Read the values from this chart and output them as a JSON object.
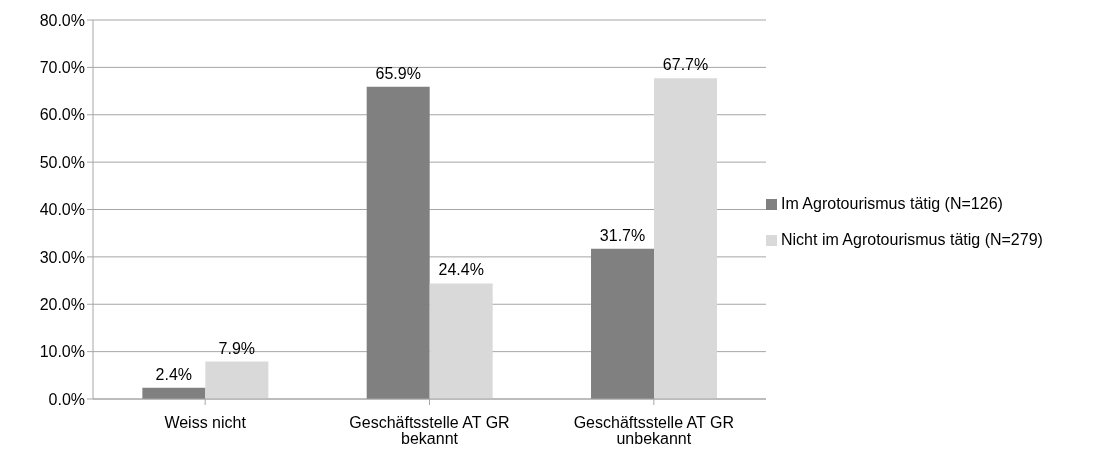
{
  "chart_data": {
    "type": "bar",
    "categories": [
      "Weiss nicht",
      "Geschäftsstelle AT GR bekannt",
      "Geschäftsstelle AT GR unbekannt"
    ],
    "series": [
      {
        "name": "Im Agrotourismus tätig (N=126)",
        "color": "#808080",
        "values": [
          2.4,
          65.9,
          31.7
        ],
        "value_labels": [
          "2.4%",
          "65.9%",
          "31.7%"
        ]
      },
      {
        "name": "Nicht im Agrotourismus tätig (N=279)",
        "color": "#d9d9d9",
        "values": [
          7.9,
          24.4,
          67.7
        ],
        "value_labels": [
          "7.9%",
          "24.4%",
          "67.7%"
        ]
      }
    ],
    "ylim": [
      0,
      80
    ],
    "yticks": [
      {
        "value": 0,
        "label": "0.0%"
      },
      {
        "value": 10,
        "label": "10.0%"
      },
      {
        "value": 20,
        "label": "20.0%"
      },
      {
        "value": 30,
        "label": "30.0%"
      },
      {
        "value": 40,
        "label": "40.0%"
      },
      {
        "value": 50,
        "label": "50.0%"
      },
      {
        "value": 60,
        "label": "60.0%"
      },
      {
        "value": 70,
        "label": "70.0%"
      },
      {
        "value": 80,
        "label": "80.0%"
      }
    ],
    "grid": "y",
    "legend": "right"
  }
}
